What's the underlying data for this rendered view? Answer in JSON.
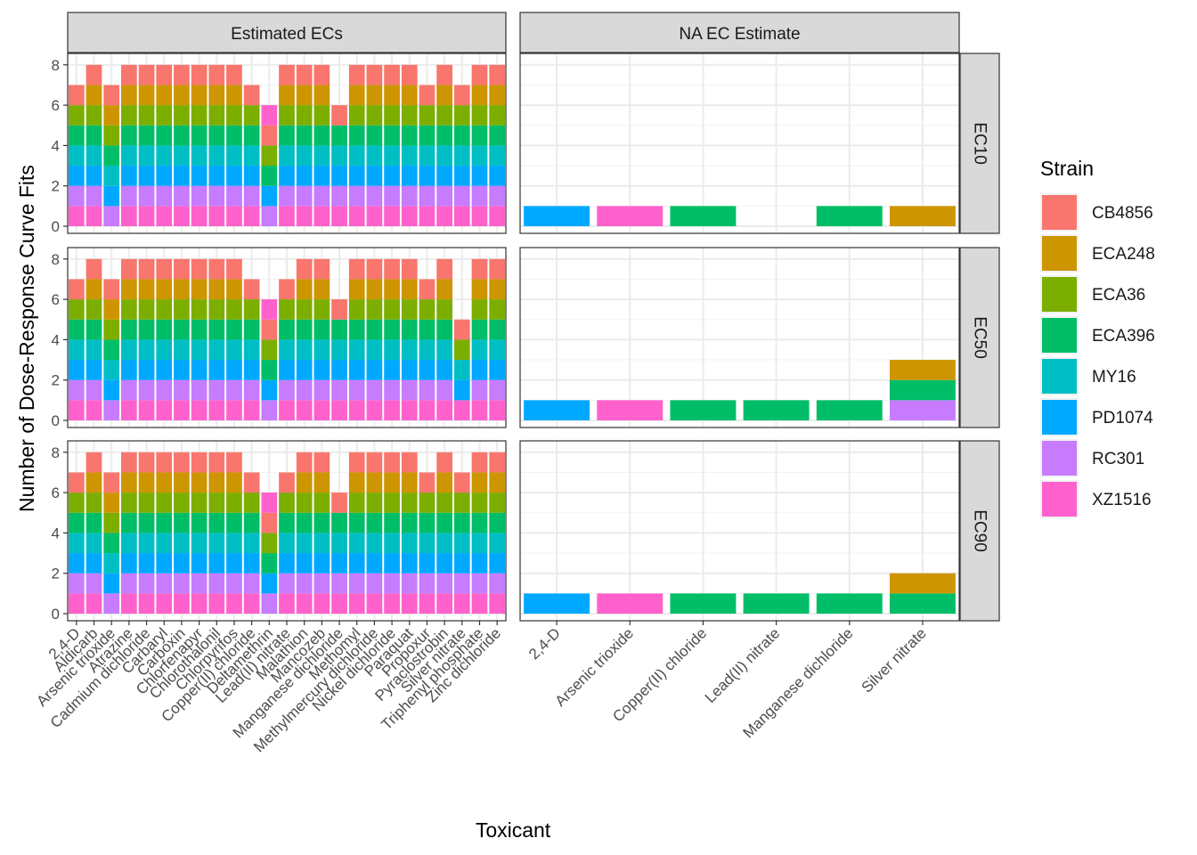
{
  "chart_data": {
    "type": "bar",
    "stacked": true,
    "ylabel": "Number of Dose-Response Curve Fits",
    "xlabel": "Toxicant",
    "ylim": [
      0,
      8.3
    ],
    "yticks": [
      0,
      2,
      4,
      6,
      8
    ],
    "grid": true,
    "legend_position": "right",
    "legend": {
      "title": "Strain",
      "entries": [
        "CB4856",
        "ECA248",
        "ECA36",
        "ECA396",
        "MY16",
        "PD1074",
        "RC301",
        "XZ1516"
      ]
    },
    "colors": {
      "CB4856": "#F8766D",
      "ECA248": "#CD9600",
      "ECA36": "#7CAE00",
      "ECA396": "#00BE67",
      "MY16": "#00BFC4",
      "PD1074": "#00A9FF",
      "RC301": "#C77CFF",
      "XZ1516": "#FF61CC"
    },
    "stack_order_bottom_to_top": [
      "XZ1516",
      "RC301",
      "PD1074",
      "MY16",
      "ECA396",
      "ECA36",
      "ECA248",
      "CB4856"
    ],
    "columns": [
      {
        "label": "Estimated ECs",
        "categories": [
          "2,4-D",
          "Aldicarb",
          "Arsenic trioxide",
          "Atrazine",
          "Cadmium dichloride",
          "Carbaryl",
          "Carboxin",
          "Chlorfenapyr",
          "Chlorothalonil",
          "Chlorpyrifos",
          "Copper(II) chloride",
          "Deltamethrin",
          "Lead(II) nitrate",
          "Malathion",
          "Mancozeb",
          "Manganese dichloride",
          "Methomyl",
          "Methylmercury dichloride",
          "Nickel dichloride",
          "Paraquat",
          "Propoxur",
          "Pyraclostrobin",
          "Silver nitrate",
          "Triphenyl phosphate",
          "Zinc dichloride"
        ]
      },
      {
        "label": "NA EC Estimate",
        "categories": [
          "2,4-D",
          "Arsenic trioxide",
          "Copper(II) chloride",
          "Lead(II) nitrate",
          "Manganese dichloride",
          "Silver nitrate"
        ]
      }
    ],
    "rows": [
      {
        "label": "EC10",
        "panels": [
          [
            [
              "XZ1516",
              "RC301",
              "PD1074",
              "MY16",
              "ECA396",
              "ECA36",
              "CB4856"
            ],
            [
              "XZ1516",
              "RC301",
              "PD1074",
              "MY16",
              "ECA396",
              "ECA36",
              "ECA248",
              "CB4856"
            ],
            [
              "RC301",
              "PD1074",
              "MY16",
              "ECA396",
              "ECA36",
              "ECA248",
              "CB4856"
            ],
            [
              "XZ1516",
              "RC301",
              "PD1074",
              "MY16",
              "ECA396",
              "ECA36",
              "ECA248",
              "CB4856"
            ],
            [
              "XZ1516",
              "RC301",
              "PD1074",
              "MY16",
              "ECA396",
              "ECA36",
              "ECA248",
              "CB4856"
            ],
            [
              "XZ1516",
              "RC301",
              "PD1074",
              "MY16",
              "ECA396",
              "ECA36",
              "ECA248",
              "CB4856"
            ],
            [
              "XZ1516",
              "RC301",
              "PD1074",
              "MY16",
              "ECA396",
              "ECA36",
              "ECA248",
              "CB4856"
            ],
            [
              "XZ1516",
              "RC301",
              "PD1074",
              "MY16",
              "ECA396",
              "ECA36",
              "ECA248",
              "CB4856"
            ],
            [
              "XZ1516",
              "RC301",
              "PD1074",
              "MY16",
              "ECA396",
              "ECA36",
              "ECA248",
              "CB4856"
            ],
            [
              "XZ1516",
              "RC301",
              "PD1074",
              "MY16",
              "ECA396",
              "ECA36",
              "ECA248",
              "CB4856"
            ],
            [
              "XZ1516",
              "RC301",
              "PD1074",
              "MY16",
              "ECA396",
              "ECA36",
              "CB4856"
            ],
            [
              "RC301",
              "PD1074",
              "ECA396",
              "ECA36",
              "CB4856",
              "XZ1516"
            ],
            [
              "XZ1516",
              "RC301",
              "PD1074",
              "MY16",
              "ECA396",
              "ECA36",
              "ECA248",
              "CB4856"
            ],
            [
              "XZ1516",
              "RC301",
              "PD1074",
              "MY16",
              "ECA396",
              "ECA36",
              "ECA248",
              "CB4856"
            ],
            [
              "XZ1516",
              "RC301",
              "PD1074",
              "MY16",
              "ECA396",
              "ECA36",
              "ECA248",
              "CB4856"
            ],
            [
              "XZ1516",
              "RC301",
              "PD1074",
              "MY16",
              "ECA396",
              "CB4856"
            ],
            [
              "XZ1516",
              "RC301",
              "PD1074",
              "MY16",
              "ECA396",
              "ECA36",
              "ECA248",
              "CB4856"
            ],
            [
              "XZ1516",
              "RC301",
              "PD1074",
              "MY16",
              "ECA396",
              "ECA36",
              "ECA248",
              "CB4856"
            ],
            [
              "XZ1516",
              "RC301",
              "PD1074",
              "MY16",
              "ECA396",
              "ECA36",
              "ECA248",
              "CB4856"
            ],
            [
              "XZ1516",
              "RC301",
              "PD1074",
              "MY16",
              "ECA396",
              "ECA36",
              "ECA248",
              "CB4856"
            ],
            [
              "XZ1516",
              "RC301",
              "PD1074",
              "MY16",
              "ECA396",
              "ECA36",
              "CB4856"
            ],
            [
              "XZ1516",
              "RC301",
              "PD1074",
              "MY16",
              "ECA396",
              "ECA36",
              "ECA248",
              "CB4856"
            ],
            [
              "XZ1516",
              "RC301",
              "PD1074",
              "MY16",
              "ECA396",
              "ECA36",
              "CB4856"
            ],
            [
              "XZ1516",
              "RC301",
              "PD1074",
              "MY16",
              "ECA396",
              "ECA36",
              "ECA248",
              "CB4856"
            ],
            [
              "XZ1516",
              "RC301",
              "PD1074",
              "MY16",
              "ECA396",
              "ECA36",
              "ECA248",
              "CB4856"
            ]
          ],
          [
            [
              "PD1074"
            ],
            [
              "XZ1516"
            ],
            [
              "ECA396"
            ],
            [],
            [
              "ECA396"
            ],
            [
              "ECA248"
            ]
          ]
        ]
      },
      {
        "label": "EC50",
        "panels": [
          [
            [
              "XZ1516",
              "RC301",
              "PD1074",
              "MY16",
              "ECA396",
              "ECA36",
              "CB4856"
            ],
            [
              "XZ1516",
              "RC301",
              "PD1074",
              "MY16",
              "ECA396",
              "ECA36",
              "ECA248",
              "CB4856"
            ],
            [
              "RC301",
              "PD1074",
              "MY16",
              "ECA396",
              "ECA36",
              "ECA248",
              "CB4856"
            ],
            [
              "XZ1516",
              "RC301",
              "PD1074",
              "MY16",
              "ECA396",
              "ECA36",
              "ECA248",
              "CB4856"
            ],
            [
              "XZ1516",
              "RC301",
              "PD1074",
              "MY16",
              "ECA396",
              "ECA36",
              "ECA248",
              "CB4856"
            ],
            [
              "XZ1516",
              "RC301",
              "PD1074",
              "MY16",
              "ECA396",
              "ECA36",
              "ECA248",
              "CB4856"
            ],
            [
              "XZ1516",
              "RC301",
              "PD1074",
              "MY16",
              "ECA396",
              "ECA36",
              "ECA248",
              "CB4856"
            ],
            [
              "XZ1516",
              "RC301",
              "PD1074",
              "MY16",
              "ECA396",
              "ECA36",
              "ECA248",
              "CB4856"
            ],
            [
              "XZ1516",
              "RC301",
              "PD1074",
              "MY16",
              "ECA396",
              "ECA36",
              "ECA248",
              "CB4856"
            ],
            [
              "XZ1516",
              "RC301",
              "PD1074",
              "MY16",
              "ECA396",
              "ECA36",
              "ECA248",
              "CB4856"
            ],
            [
              "XZ1516",
              "RC301",
              "PD1074",
              "MY16",
              "ECA396",
              "ECA36",
              "CB4856"
            ],
            [
              "RC301",
              "PD1074",
              "ECA396",
              "ECA36",
              "CB4856",
              "XZ1516"
            ],
            [
              "XZ1516",
              "RC301",
              "PD1074",
              "MY16",
              "ECA396",
              "ECA36",
              "CB4856"
            ],
            [
              "XZ1516",
              "RC301",
              "PD1074",
              "MY16",
              "ECA396",
              "ECA36",
              "ECA248",
              "CB4856"
            ],
            [
              "XZ1516",
              "RC301",
              "PD1074",
              "MY16",
              "ECA396",
              "ECA36",
              "ECA248",
              "CB4856"
            ],
            [
              "XZ1516",
              "RC301",
              "PD1074",
              "MY16",
              "ECA396",
              "CB4856"
            ],
            [
              "XZ1516",
              "RC301",
              "PD1074",
              "MY16",
              "ECA396",
              "ECA36",
              "ECA248",
              "CB4856"
            ],
            [
              "XZ1516",
              "RC301",
              "PD1074",
              "MY16",
              "ECA396",
              "ECA36",
              "ECA248",
              "CB4856"
            ],
            [
              "XZ1516",
              "RC301",
              "PD1074",
              "MY16",
              "ECA396",
              "ECA36",
              "ECA248",
              "CB4856"
            ],
            [
              "XZ1516",
              "RC301",
              "PD1074",
              "MY16",
              "ECA396",
              "ECA36",
              "ECA248",
              "CB4856"
            ],
            [
              "XZ1516",
              "RC301",
              "PD1074",
              "MY16",
              "ECA396",
              "ECA36",
              "CB4856"
            ],
            [
              "XZ1516",
              "RC301",
              "PD1074",
              "MY16",
              "ECA396",
              "ECA36",
              "ECA248",
              "CB4856"
            ],
            [
              "XZ1516",
              "PD1074",
              "MY16",
              "ECA36",
              "CB4856"
            ],
            [
              "XZ1516",
              "RC301",
              "PD1074",
              "MY16",
              "ECA396",
              "ECA36",
              "ECA248",
              "CB4856"
            ],
            [
              "XZ1516",
              "RC301",
              "PD1074",
              "MY16",
              "ECA396",
              "ECA36",
              "ECA248",
              "CB4856"
            ]
          ],
          [
            [
              "PD1074"
            ],
            [
              "XZ1516"
            ],
            [
              "ECA396"
            ],
            [
              "ECA396"
            ],
            [
              "ECA396"
            ],
            [
              "RC301",
              "ECA396",
              "ECA248"
            ]
          ]
        ]
      },
      {
        "label": "EC90",
        "panels": [
          [
            [
              "XZ1516",
              "RC301",
              "PD1074",
              "MY16",
              "ECA396",
              "ECA36",
              "CB4856"
            ],
            [
              "XZ1516",
              "RC301",
              "PD1074",
              "MY16",
              "ECA396",
              "ECA36",
              "ECA248",
              "CB4856"
            ],
            [
              "RC301",
              "PD1074",
              "MY16",
              "ECA396",
              "ECA36",
              "ECA248",
              "CB4856"
            ],
            [
              "XZ1516",
              "RC301",
              "PD1074",
              "MY16",
              "ECA396",
              "ECA36",
              "ECA248",
              "CB4856"
            ],
            [
              "XZ1516",
              "RC301",
              "PD1074",
              "MY16",
              "ECA396",
              "ECA36",
              "ECA248",
              "CB4856"
            ],
            [
              "XZ1516",
              "RC301",
              "PD1074",
              "MY16",
              "ECA396",
              "ECA36",
              "ECA248",
              "CB4856"
            ],
            [
              "XZ1516",
              "RC301",
              "PD1074",
              "MY16",
              "ECA396",
              "ECA36",
              "ECA248",
              "CB4856"
            ],
            [
              "XZ1516",
              "RC301",
              "PD1074",
              "MY16",
              "ECA396",
              "ECA36",
              "ECA248",
              "CB4856"
            ],
            [
              "XZ1516",
              "RC301",
              "PD1074",
              "MY16",
              "ECA396",
              "ECA36",
              "ECA248",
              "CB4856"
            ],
            [
              "XZ1516",
              "RC301",
              "PD1074",
              "MY16",
              "ECA396",
              "ECA36",
              "ECA248",
              "CB4856"
            ],
            [
              "XZ1516",
              "RC301",
              "PD1074",
              "MY16",
              "ECA396",
              "ECA36",
              "CB4856"
            ],
            [
              "RC301",
              "PD1074",
              "ECA396",
              "ECA36",
              "CB4856",
              "XZ1516"
            ],
            [
              "XZ1516",
              "RC301",
              "PD1074",
              "MY16",
              "ECA396",
              "ECA36",
              "CB4856"
            ],
            [
              "XZ1516",
              "RC301",
              "PD1074",
              "MY16",
              "ECA396",
              "ECA36",
              "ECA248",
              "CB4856"
            ],
            [
              "XZ1516",
              "RC301",
              "PD1074",
              "MY16",
              "ECA396",
              "ECA36",
              "ECA248",
              "CB4856"
            ],
            [
              "XZ1516",
              "RC301",
              "PD1074",
              "MY16",
              "ECA396",
              "CB4856"
            ],
            [
              "XZ1516",
              "RC301",
              "PD1074",
              "MY16",
              "ECA396",
              "ECA36",
              "ECA248",
              "CB4856"
            ],
            [
              "XZ1516",
              "RC301",
              "PD1074",
              "MY16",
              "ECA396",
              "ECA36",
              "ECA248",
              "CB4856"
            ],
            [
              "XZ1516",
              "RC301",
              "PD1074",
              "MY16",
              "ECA396",
              "ECA36",
              "ECA248",
              "CB4856"
            ],
            [
              "XZ1516",
              "RC301",
              "PD1074",
              "MY16",
              "ECA396",
              "ECA36",
              "ECA248",
              "CB4856"
            ],
            [
              "XZ1516",
              "RC301",
              "PD1074",
              "MY16",
              "ECA396",
              "ECA36",
              "CB4856"
            ],
            [
              "XZ1516",
              "RC301",
              "PD1074",
              "MY16",
              "ECA396",
              "ECA36",
              "ECA248",
              "CB4856"
            ],
            [
              "XZ1516",
              "RC301",
              "PD1074",
              "MY16",
              "ECA396",
              "ECA36",
              "CB4856"
            ],
            [
              "XZ1516",
              "RC301",
              "PD1074",
              "MY16",
              "ECA396",
              "ECA36",
              "ECA248",
              "CB4856"
            ],
            [
              "XZ1516",
              "RC301",
              "PD1074",
              "MY16",
              "ECA396",
              "ECA36",
              "ECA248",
              "CB4856"
            ]
          ],
          [
            [
              "PD1074"
            ],
            [
              "XZ1516"
            ],
            [
              "ECA396"
            ],
            [
              "ECA396"
            ],
            [
              "ECA396"
            ],
            [
              "ECA396",
              "ECA248"
            ]
          ]
        ]
      }
    ]
  }
}
